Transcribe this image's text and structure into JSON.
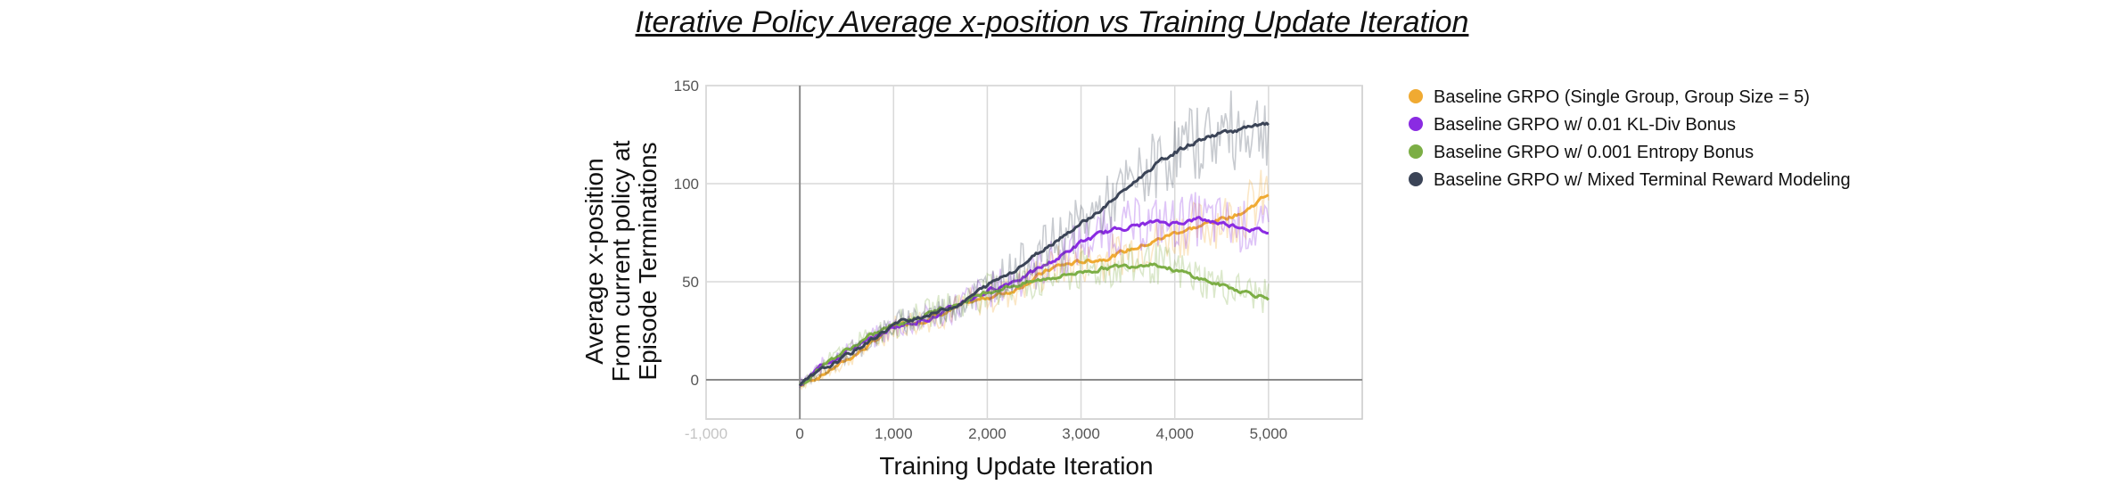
{
  "chart_data": {
    "type": "line",
    "title": "Iterative Policy Average x-position vs Training Update Iteration",
    "xlabel": "Training Update Iteration",
    "ylabel_lines": [
      "Average x-position",
      "From current policy at",
      "Episode Terminations"
    ],
    "xlim": [
      -1000,
      6000
    ],
    "ylim": [
      -20,
      150
    ],
    "x_ticks": [
      -1000,
      0,
      1000,
      2000,
      3000,
      4000,
      5000
    ],
    "x_tick_labels": [
      "-1,000",
      "0",
      "1,000",
      "2,000",
      "3,000",
      "4,000",
      "5,000"
    ],
    "y_ticks": [
      0,
      50,
      100,
      150
    ],
    "y_tick_labels": [
      "0",
      "50",
      "100",
      "150"
    ],
    "grid": true,
    "legend_position": "right",
    "series": [
      {
        "name": "Baseline GRPO (Single Group, Group Size = 5)",
        "color": "#f0aa32",
        "x": [
          0,
          250,
          500,
          750,
          1000,
          1250,
          1500,
          1750,
          2000,
          2250,
          2500,
          2750,
          3000,
          3250,
          3500,
          3750,
          4000,
          4250,
          4500,
          4750,
          5000
        ],
        "y": [
          -3,
          3,
          10,
          18,
          27,
          30,
          33,
          38,
          42,
          45,
          52,
          58,
          60,
          62,
          66,
          70,
          75,
          78,
          82,
          86,
          95
        ]
      },
      {
        "name": "Baseline GRPO w/ 0.01 KL-Div Bonus",
        "color": "#8a2be2",
        "x": [
          0,
          250,
          500,
          750,
          1000,
          1250,
          1500,
          1750,
          2000,
          2250,
          2500,
          2750,
          3000,
          3250,
          3500,
          3750,
          4000,
          4250,
          4500,
          4750,
          5000
        ],
        "y": [
          -3,
          8,
          15,
          20,
          27,
          30,
          33,
          40,
          45,
          50,
          55,
          62,
          70,
          75,
          78,
          80,
          80,
          82,
          80,
          78,
          75
        ]
      },
      {
        "name": "Baseline GRPO w/ 0.001 Entropy Bonus",
        "color": "#7cae45",
        "x": [
          0,
          250,
          500,
          750,
          1000,
          1250,
          1500,
          1750,
          2000,
          2250,
          2500,
          2750,
          3000,
          3250,
          3500,
          3750,
          4000,
          4250,
          4500,
          4750,
          5000
        ],
        "y": [
          -3,
          8,
          15,
          22,
          28,
          32,
          36,
          40,
          45,
          48,
          50,
          53,
          55,
          57,
          58,
          60,
          56,
          52,
          48,
          45,
          42
        ]
      },
      {
        "name": "Baseline GRPO w/ Mixed Terminal Reward Modeling",
        "color": "#3b4457",
        "x": [
          0,
          250,
          500,
          750,
          1000,
          1250,
          1500,
          1750,
          2000,
          2250,
          2500,
          2750,
          3000,
          3250,
          3500,
          3750,
          4000,
          4250,
          4500,
          4750,
          5000
        ],
        "y": [
          -3,
          5,
          12,
          20,
          28,
          32,
          35,
          40,
          48,
          55,
          63,
          72,
          80,
          88,
          98,
          108,
          116,
          122,
          126,
          128,
          130
        ]
      }
    ]
  }
}
